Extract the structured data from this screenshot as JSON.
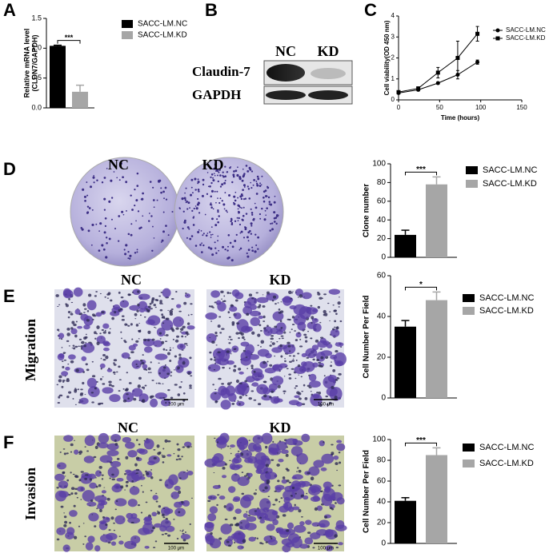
{
  "panel_labels": [
    "A",
    "B",
    "C",
    "D",
    "E",
    "F"
  ],
  "blot": {
    "lanes": [
      "NC",
      "KD"
    ],
    "bands": [
      "Claudin-7",
      "GAPDH"
    ]
  },
  "colony": {
    "labels": [
      "NC",
      "KD"
    ]
  },
  "migration": {
    "row_label": "Migration",
    "labels": [
      "NC",
      "KD"
    ],
    "scale_bar": "100 μm"
  },
  "invasion": {
    "row_label": "Invasion",
    "labels": [
      "NC",
      "KD"
    ],
    "scale_bar": "100 μm"
  },
  "chart_data": [
    {
      "type": "bar",
      "y_label": [
        "Relative mRNA level",
        "(CLDN7/GAPDH)"
      ],
      "categories": [
        null
      ],
      "series": [
        {
          "name": "SACC-LM.NC",
          "color": "#000000",
          "values": [
            1.04
          ],
          "errors": [
            0.01
          ]
        },
        {
          "name": "SACC-LM.KD",
          "color": "#a6a6a6",
          "values": [
            0.27
          ],
          "errors": [
            0.11
          ]
        }
      ],
      "ylim": [
        0,
        1.5
      ],
      "yticks": [
        {
          "value": 0,
          "label": "0.0"
        },
        0.5,
        {
          "value": 1,
          "label": "1.0"
        },
        1.5
      ],
      "significance": "***"
    },
    {
      "type": "line",
      "x_label": "Time (hours)",
      "y_label": [
        "Cell viability(OD 450 nm)"
      ],
      "x": [
        0,
        24,
        48,
        72,
        96
      ],
      "series": [
        {
          "name": "SACC-LM.NC",
          "color": "#000000",
          "marker": "circle",
          "values": [
            0.33,
            0.48,
            0.8,
            1.2,
            1.8
          ],
          "errors": [
            0.03,
            0.05,
            0.05,
            0.2,
            0.1
          ]
        },
        {
          "name": "SACC-LM.KD",
          "color": "#000000",
          "marker": "square",
          "values": [
            0.37,
            0.55,
            1.3,
            2.0,
            3.15
          ],
          "errors": [
            0.05,
            0.05,
            0.25,
            0.8,
            0.35
          ]
        }
      ],
      "xlim": [
        0,
        150
      ],
      "xticks": [
        0,
        50,
        100,
        150
      ],
      "ylim": [
        0,
        4
      ],
      "yticks": [
        0,
        1,
        2,
        3,
        4
      ]
    },
    {
      "type": "bar",
      "y_label": [
        "Clone number"
      ],
      "categories": [
        null
      ],
      "series": [
        {
          "name": "SACC-LM.NC",
          "color": "#000000",
          "values": [
            24
          ],
          "errors": [
            5
          ]
        },
        {
          "name": "SACC-LM.KD",
          "color": "#a6a6a6",
          "values": [
            78
          ],
          "errors": [
            8
          ]
        }
      ],
      "ylim": [
        0,
        100
      ],
      "yticks": [
        0,
        20,
        40,
        60,
        80,
        100
      ],
      "significance": "***"
    },
    {
      "type": "bar",
      "y_label": [
        "Cell Number Per Field"
      ],
      "categories": [
        null
      ],
      "series": [
        {
          "name": "SACC-LM.NC",
          "color": "#000000",
          "values": [
            35
          ],
          "errors": [
            3
          ]
        },
        {
          "name": "SACC-LM.KD",
          "color": "#a6a6a6",
          "values": [
            48
          ],
          "errors": [
            4
          ]
        }
      ],
      "ylim": [
        0,
        60
      ],
      "yticks": [
        0,
        20,
        40,
        60
      ],
      "significance": "*"
    },
    {
      "type": "bar",
      "y_label": [
        "Cell Number Per Field"
      ],
      "categories": [
        null
      ],
      "series": [
        {
          "name": "SACC-LM.NC",
          "color": "#000000",
          "values": [
            41
          ],
          "errors": [
            3
          ]
        },
        {
          "name": "SACC-LM.KD",
          "color": "#a6a6a6",
          "values": [
            85
          ],
          "errors": [
            7
          ]
        }
      ],
      "ylim": [
        0,
        100
      ],
      "yticks": [
        0,
        20,
        40,
        60,
        80,
        100
      ],
      "significance": "***"
    }
  ]
}
